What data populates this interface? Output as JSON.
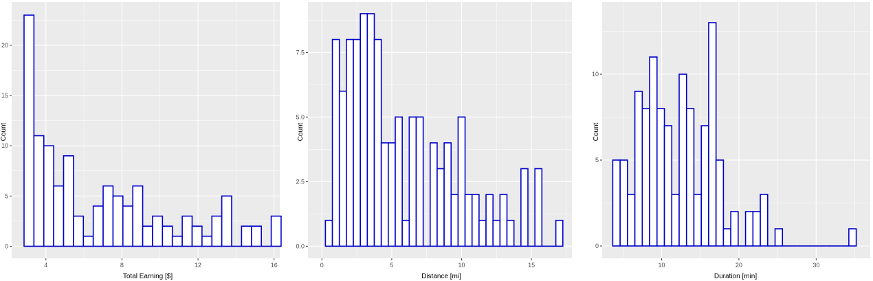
{
  "chart_data": [
    {
      "type": "bar",
      "xlabel": "Total Earning [$]",
      "ylabel": "Count",
      "xlim": [
        2.2,
        16.3
      ],
      "ylim": [
        -1.2,
        24.3
      ],
      "x_ticks": [
        4,
        8,
        12,
        16
      ],
      "y_ticks": [
        0,
        5,
        10,
        15,
        20
      ],
      "x_tick_labels": [
        "4",
        "8",
        "12",
        "16"
      ],
      "y_tick_labels": [
        "0",
        "5",
        "10",
        "15",
        "20"
      ],
      "grid": true,
      "bin_start": 2.85,
      "bin_width": 0.52,
      "values": [
        23,
        11,
        10,
        6,
        9,
        3,
        1,
        4,
        6,
        5,
        4,
        6,
        2,
        3,
        2,
        1,
        3,
        2,
        1,
        3,
        5,
        0,
        2,
        2,
        0,
        3
      ]
    },
    {
      "type": "bar",
      "xlabel": "Distance [mi]",
      "ylabel": "Count",
      "xlim": [
        -1.0,
        17.9
      ],
      "ylim": [
        -0.47,
        9.45
      ],
      "x_ticks": [
        0,
        5,
        10,
        15
      ],
      "y_ticks": [
        0,
        2.5,
        5,
        7.5
      ],
      "x_tick_labels": [
        "0",
        "5",
        "10",
        "15"
      ],
      "y_tick_labels": [
        "0.0",
        "2.5",
        "5.0",
        "7.5"
      ],
      "grid": true,
      "bin_start": 0.25,
      "bin_width": 0.5,
      "values": [
        1,
        8,
        6,
        8,
        8,
        9,
        9,
        8,
        4,
        4,
        5,
        1,
        5,
        5,
        0,
        4,
        3,
        4,
        2,
        5,
        2,
        2,
        1,
        2,
        1,
        2,
        1,
        0,
        3,
        0,
        3,
        0,
        0,
        1
      ]
    },
    {
      "type": "bar",
      "xlabel": "Duration [min]",
      "ylabel": "Count",
      "xlim": [
        2.3,
        37.0
      ],
      "ylim": [
        -0.72,
        14.2
      ],
      "x_ticks": [
        10,
        20,
        30
      ],
      "y_ticks": [
        0,
        5,
        10
      ],
      "x_tick_labels": [
        "10",
        "20",
        "30"
      ],
      "y_tick_labels": [
        "0",
        "5",
        "10"
      ],
      "grid": true,
      "bin_start": 3.67,
      "bin_width": 0.955,
      "values": [
        5,
        5,
        3,
        9,
        8,
        11,
        8,
        7,
        3,
        10,
        8,
        3,
        7,
        13,
        5,
        1,
        2,
        0,
        2,
        2,
        3,
        0,
        1,
        0,
        0,
        0,
        0,
        0,
        0,
        0,
        0,
        0,
        1
      ]
    }
  ],
  "colors": {
    "panel_background": "#ebebeb",
    "grid_major": "#ffffff",
    "bar_outline": "#0000cc",
    "bar_fill": "#ffffff"
  }
}
